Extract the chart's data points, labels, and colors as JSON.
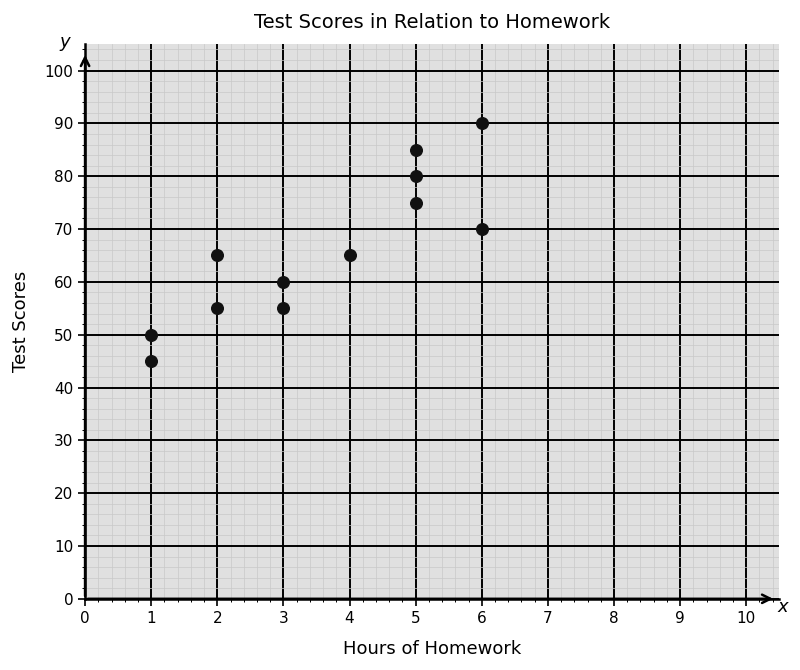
{
  "title": "Test Scores in Relation to Homework",
  "xlabel": "Hours of Homework",
  "ylabel": "Test Scores",
  "x_label_axis": "x",
  "y_label_axis": "y",
  "x_data": [
    1,
    1,
    2,
    2,
    3,
    3,
    4,
    5,
    5,
    5,
    6,
    6
  ],
  "y_data": [
    45,
    50,
    55,
    65,
    55,
    60,
    65,
    75,
    80,
    85,
    70,
    90
  ],
  "xlim": [
    0,
    10.3
  ],
  "ylim": [
    0,
    103
  ],
  "xlim_display": [
    0,
    10
  ],
  "ylim_display": [
    0,
    100
  ],
  "x_major_ticks": [
    0,
    1,
    2,
    3,
    4,
    5,
    6,
    7,
    8,
    9,
    10
  ],
  "y_major_ticks": [
    0,
    10,
    20,
    30,
    40,
    50,
    60,
    70,
    80,
    90,
    100
  ],
  "dot_color": "#111111",
  "dot_size": 70,
  "background_color": "#e0e0e0",
  "grid_major_color": "#000000",
  "grid_minor_color": "#c8c8c8",
  "grid_major_lw": 1.4,
  "grid_minor_lw": 0.5,
  "title_fontsize": 14,
  "label_fontsize": 13,
  "tick_fontsize": 11,
  "axis_letter_fontsize": 13,
  "fig_width": 8.0,
  "fig_height": 6.7
}
